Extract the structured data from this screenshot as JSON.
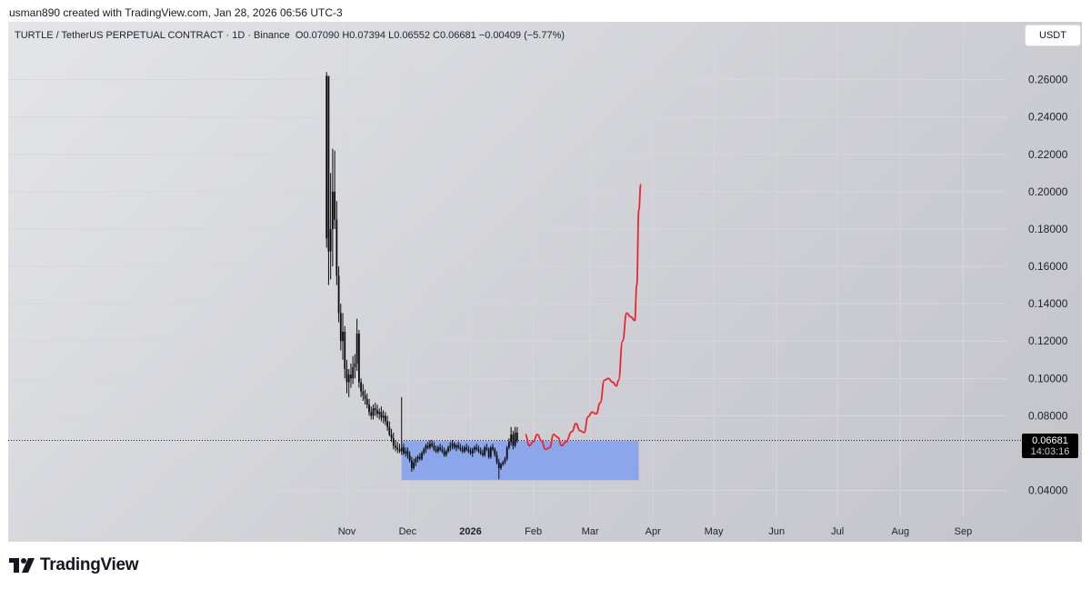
{
  "header": {
    "credit": "usman890 created with TradingView.com, Jan 28, 2026 06:56 UTC-3"
  },
  "symbol_bar": {
    "name": "TURTLE / TetherUS PERPETUAL CONTRACT · 1D · Binance",
    "open": "O0.07090",
    "high": "H0.07394",
    "low": "L0.06552",
    "close": "C0.06681",
    "change": "−0.00409 (−5.77%)"
  },
  "currency_button": "USDT",
  "last_price": {
    "value": "0.06681",
    "countdown": "14:03:16"
  },
  "logo": {
    "text": "TradingView",
    "icon": "tradingview-logo-icon"
  },
  "colors": {
    "candle": "#0b0b0b",
    "range_box": "#7f9fef",
    "projection": "#e8272e",
    "grid": "#d6d7dc"
  },
  "chart_data": {
    "type": "candlestick",
    "title": "TURTLE / TetherUS PERPETUAL CONTRACT · 1D · Binance",
    "y_axis": {
      "ticks": [
        "0.26000",
        "0.24000",
        "0.22000",
        "0.20000",
        "0.18000",
        "0.16000",
        "0.14000",
        "0.12000",
        "0.10000",
        "0.08000",
        "0.04000"
      ],
      "tick_values": [
        0.26,
        0.24,
        0.22,
        0.2,
        0.18,
        0.16,
        0.14,
        0.12,
        0.1,
        0.08,
        0.04
      ],
      "range": [
        0.02,
        0.285
      ],
      "position": "right"
    },
    "x_axis": {
      "ticks": [
        {
          "label": "Nov",
          "date": "2025-11-01"
        },
        {
          "label": "Dec",
          "date": "2025-12-01"
        },
        {
          "label": "2026",
          "date": "2026-01-01",
          "bold": true
        },
        {
          "label": "Feb",
          "date": "2026-02-01"
        },
        {
          "label": "Mar",
          "date": "2026-03-01"
        },
        {
          "label": "Apr",
          "date": "2026-04-01"
        },
        {
          "label": "May",
          "date": "2026-05-01"
        },
        {
          "label": "Jun",
          "date": "2026-06-01"
        },
        {
          "label": "Jul",
          "date": "2026-07-01"
        },
        {
          "label": "Aug",
          "date": "2026-08-01"
        },
        {
          "label": "Sep",
          "date": "2026-09-01"
        }
      ]
    },
    "grid": true,
    "last_close": 0.06681,
    "candles": [
      {
        "date": "2025-10-22",
        "o": 0.175,
        "h": 0.264,
        "l": 0.17,
        "c": 0.262
      },
      {
        "date": "2025-10-23",
        "o": 0.262,
        "h": 0.262,
        "l": 0.15,
        "c": 0.168
      },
      {
        "date": "2025-10-24",
        "o": 0.168,
        "h": 0.21,
        "l": 0.153,
        "c": 0.18
      },
      {
        "date": "2025-10-25",
        "o": 0.18,
        "h": 0.223,
        "l": 0.16,
        "c": 0.2
      },
      {
        "date": "2025-10-26",
        "o": 0.2,
        "h": 0.222,
        "l": 0.18,
        "c": 0.185
      },
      {
        "date": "2025-10-27",
        "o": 0.185,
        "h": 0.195,
        "l": 0.15,
        "c": 0.155
      },
      {
        "date": "2025-10-28",
        "o": 0.155,
        "h": 0.16,
        "l": 0.13,
        "c": 0.135
      },
      {
        "date": "2025-10-29",
        "o": 0.135,
        "h": 0.14,
        "l": 0.115,
        "c": 0.12
      },
      {
        "date": "2025-10-30",
        "o": 0.12,
        "h": 0.135,
        "l": 0.11,
        "c": 0.125
      },
      {
        "date": "2025-10-31",
        "o": 0.125,
        "h": 0.128,
        "l": 0.1,
        "c": 0.105
      },
      {
        "date": "2025-11-01",
        "o": 0.105,
        "h": 0.11,
        "l": 0.092,
        "c": 0.098
      },
      {
        "date": "2025-11-02",
        "o": 0.098,
        "h": 0.105,
        "l": 0.09,
        "c": 0.102
      },
      {
        "date": "2025-11-03",
        "o": 0.102,
        "h": 0.108,
        "l": 0.095,
        "c": 0.1
      },
      {
        "date": "2025-11-04",
        "o": 0.1,
        "h": 0.112,
        "l": 0.097,
        "c": 0.106
      },
      {
        "date": "2025-11-05",
        "o": 0.106,
        "h": 0.113,
        "l": 0.1,
        "c": 0.108
      },
      {
        "date": "2025-11-06",
        "o": 0.108,
        "h": 0.132,
        "l": 0.104,
        "c": 0.124
      },
      {
        "date": "2025-11-07",
        "o": 0.124,
        "h": 0.126,
        "l": 0.095,
        "c": 0.098
      },
      {
        "date": "2025-11-08",
        "o": 0.098,
        "h": 0.1,
        "l": 0.09,
        "c": 0.093
      },
      {
        "date": "2025-11-09",
        "o": 0.093,
        "h": 0.097,
        "l": 0.088,
        "c": 0.091
      },
      {
        "date": "2025-11-10",
        "o": 0.091,
        "h": 0.094,
        "l": 0.086,
        "c": 0.089
      },
      {
        "date": "2025-11-11",
        "o": 0.089,
        "h": 0.092,
        "l": 0.084,
        "c": 0.086
      },
      {
        "date": "2025-11-12",
        "o": 0.086,
        "h": 0.089,
        "l": 0.08,
        "c": 0.082
      },
      {
        "date": "2025-11-13",
        "o": 0.082,
        "h": 0.085,
        "l": 0.078,
        "c": 0.08
      },
      {
        "date": "2025-11-14",
        "o": 0.08,
        "h": 0.086,
        "l": 0.078,
        "c": 0.084
      },
      {
        "date": "2025-11-15",
        "o": 0.084,
        "h": 0.087,
        "l": 0.08,
        "c": 0.083
      },
      {
        "date": "2025-11-16",
        "o": 0.083,
        "h": 0.086,
        "l": 0.079,
        "c": 0.081
      },
      {
        "date": "2025-11-17",
        "o": 0.081,
        "h": 0.084,
        "l": 0.078,
        "c": 0.082
      },
      {
        "date": "2025-11-18",
        "o": 0.082,
        "h": 0.085,
        "l": 0.077,
        "c": 0.079
      },
      {
        "date": "2025-11-19",
        "o": 0.079,
        "h": 0.083,
        "l": 0.076,
        "c": 0.08
      },
      {
        "date": "2025-11-20",
        "o": 0.08,
        "h": 0.082,
        "l": 0.075,
        "c": 0.077
      },
      {
        "date": "2025-11-21",
        "o": 0.077,
        "h": 0.08,
        "l": 0.072,
        "c": 0.074
      },
      {
        "date": "2025-11-22",
        "o": 0.074,
        "h": 0.077,
        "l": 0.069,
        "c": 0.07
      },
      {
        "date": "2025-11-23",
        "o": 0.07,
        "h": 0.073,
        "l": 0.066,
        "c": 0.068
      },
      {
        "date": "2025-11-24",
        "o": 0.068,
        "h": 0.071,
        "l": 0.062,
        "c": 0.064
      },
      {
        "date": "2025-11-25",
        "o": 0.064,
        "h": 0.067,
        "l": 0.061,
        "c": 0.063
      },
      {
        "date": "2025-11-26",
        "o": 0.063,
        "h": 0.066,
        "l": 0.06,
        "c": 0.062
      },
      {
        "date": "2025-11-27",
        "o": 0.062,
        "h": 0.065,
        "l": 0.06,
        "c": 0.061
      },
      {
        "date": "2025-11-28",
        "o": 0.061,
        "h": 0.09,
        "l": 0.059,
        "c": 0.063
      },
      {
        "date": "2025-11-29",
        "o": 0.063,
        "h": 0.065,
        "l": 0.059,
        "c": 0.06
      },
      {
        "date": "2025-11-30",
        "o": 0.06,
        "h": 0.063,
        "l": 0.058,
        "c": 0.061
      },
      {
        "date": "2025-12-01",
        "o": 0.061,
        "h": 0.063,
        "l": 0.057,
        "c": 0.059
      },
      {
        "date": "2025-12-02",
        "o": 0.059,
        "h": 0.061,
        "l": 0.055,
        "c": 0.056
      },
      {
        "date": "2025-12-03",
        "o": 0.056,
        "h": 0.058,
        "l": 0.05,
        "c": 0.052
      },
      {
        "date": "2025-12-04",
        "o": 0.052,
        "h": 0.057,
        "l": 0.051,
        "c": 0.055
      },
      {
        "date": "2025-12-05",
        "o": 0.055,
        "h": 0.058,
        "l": 0.053,
        "c": 0.057
      },
      {
        "date": "2025-12-06",
        "o": 0.057,
        "h": 0.059,
        "l": 0.055,
        "c": 0.058
      },
      {
        "date": "2025-12-07",
        "o": 0.058,
        "h": 0.06,
        "l": 0.056,
        "c": 0.057
      },
      {
        "date": "2025-12-08",
        "o": 0.057,
        "h": 0.061,
        "l": 0.056,
        "c": 0.06
      },
      {
        "date": "2025-12-09",
        "o": 0.06,
        "h": 0.063,
        "l": 0.059,
        "c": 0.062
      },
      {
        "date": "2025-12-10",
        "o": 0.062,
        "h": 0.065,
        "l": 0.06,
        "c": 0.064
      },
      {
        "date": "2025-12-11",
        "o": 0.064,
        "h": 0.066,
        "l": 0.062,
        "c": 0.063
      },
      {
        "date": "2025-12-12",
        "o": 0.063,
        "h": 0.067,
        "l": 0.062,
        "c": 0.065
      },
      {
        "date": "2025-12-13",
        "o": 0.065,
        "h": 0.067,
        "l": 0.063,
        "c": 0.064
      },
      {
        "date": "2025-12-14",
        "o": 0.064,
        "h": 0.066,
        "l": 0.061,
        "c": 0.062
      },
      {
        "date": "2025-12-15",
        "o": 0.062,
        "h": 0.064,
        "l": 0.06,
        "c": 0.061
      },
      {
        "date": "2025-12-16",
        "o": 0.061,
        "h": 0.064,
        "l": 0.06,
        "c": 0.063
      },
      {
        "date": "2025-12-17",
        "o": 0.063,
        "h": 0.065,
        "l": 0.061,
        "c": 0.062
      },
      {
        "date": "2025-12-18",
        "o": 0.062,
        "h": 0.064,
        "l": 0.06,
        "c": 0.061
      },
      {
        "date": "2025-12-19",
        "o": 0.061,
        "h": 0.063,
        "l": 0.058,
        "c": 0.059
      },
      {
        "date": "2025-12-20",
        "o": 0.059,
        "h": 0.062,
        "l": 0.058,
        "c": 0.061
      },
      {
        "date": "2025-12-21",
        "o": 0.061,
        "h": 0.064,
        "l": 0.06,
        "c": 0.063
      },
      {
        "date": "2025-12-22",
        "o": 0.063,
        "h": 0.066,
        "l": 0.061,
        "c": 0.064
      },
      {
        "date": "2025-12-23",
        "o": 0.064,
        "h": 0.067,
        "l": 0.062,
        "c": 0.065
      },
      {
        "date": "2025-12-24",
        "o": 0.065,
        "h": 0.066,
        "l": 0.062,
        "c": 0.063
      },
      {
        "date": "2025-12-25",
        "o": 0.063,
        "h": 0.065,
        "l": 0.061,
        "c": 0.064
      },
      {
        "date": "2025-12-26",
        "o": 0.064,
        "h": 0.066,
        "l": 0.062,
        "c": 0.063
      },
      {
        "date": "2025-12-27",
        "o": 0.063,
        "h": 0.065,
        "l": 0.061,
        "c": 0.062
      },
      {
        "date": "2025-12-28",
        "o": 0.062,
        "h": 0.064,
        "l": 0.06,
        "c": 0.061
      },
      {
        "date": "2025-12-29",
        "o": 0.061,
        "h": 0.064,
        "l": 0.06,
        "c": 0.063
      },
      {
        "date": "2025-12-30",
        "o": 0.063,
        "h": 0.065,
        "l": 0.061,
        "c": 0.062
      },
      {
        "date": "2025-12-31",
        "o": 0.062,
        "h": 0.064,
        "l": 0.06,
        "c": 0.061
      },
      {
        "date": "2026-01-01",
        "o": 0.061,
        "h": 0.063,
        "l": 0.059,
        "c": 0.06
      },
      {
        "date": "2026-01-02",
        "o": 0.06,
        "h": 0.063,
        "l": 0.058,
        "c": 0.062
      },
      {
        "date": "2026-01-03",
        "o": 0.062,
        "h": 0.064,
        "l": 0.06,
        "c": 0.063
      },
      {
        "date": "2026-01-04",
        "o": 0.063,
        "h": 0.065,
        "l": 0.061,
        "c": 0.062
      },
      {
        "date": "2026-01-05",
        "o": 0.062,
        "h": 0.064,
        "l": 0.06,
        "c": 0.061
      },
      {
        "date": "2026-01-06",
        "o": 0.061,
        "h": 0.063,
        "l": 0.059,
        "c": 0.06
      },
      {
        "date": "2026-01-07",
        "o": 0.06,
        "h": 0.062,
        "l": 0.058,
        "c": 0.059
      },
      {
        "date": "2026-01-08",
        "o": 0.059,
        "h": 0.064,
        "l": 0.058,
        "c": 0.063
      },
      {
        "date": "2026-01-09",
        "o": 0.063,
        "h": 0.065,
        "l": 0.061,
        "c": 0.062
      },
      {
        "date": "2026-01-10",
        "o": 0.062,
        "h": 0.063,
        "l": 0.057,
        "c": 0.058
      },
      {
        "date": "2026-01-11",
        "o": 0.058,
        "h": 0.064,
        "l": 0.057,
        "c": 0.063
      },
      {
        "date": "2026-01-12",
        "o": 0.063,
        "h": 0.065,
        "l": 0.061,
        "c": 0.062
      },
      {
        "date": "2026-01-13",
        "o": 0.062,
        "h": 0.063,
        "l": 0.058,
        "c": 0.059
      },
      {
        "date": "2026-01-14",
        "o": 0.059,
        "h": 0.061,
        "l": 0.054,
        "c": 0.055
      },
      {
        "date": "2026-01-15",
        "o": 0.055,
        "h": 0.057,
        "l": 0.046,
        "c": 0.052
      },
      {
        "date": "2026-01-16",
        "o": 0.052,
        "h": 0.055,
        "l": 0.051,
        "c": 0.054
      },
      {
        "date": "2026-01-17",
        "o": 0.054,
        "h": 0.056,
        "l": 0.053,
        "c": 0.055
      },
      {
        "date": "2026-01-18",
        "o": 0.055,
        "h": 0.058,
        "l": 0.054,
        "c": 0.057
      },
      {
        "date": "2026-01-19",
        "o": 0.057,
        "h": 0.064,
        "l": 0.056,
        "c": 0.063
      },
      {
        "date": "2026-01-20",
        "o": 0.063,
        "h": 0.068,
        "l": 0.062,
        "c": 0.066
      },
      {
        "date": "2026-01-21",
        "o": 0.066,
        "h": 0.074,
        "l": 0.064,
        "c": 0.07
      },
      {
        "date": "2026-01-22",
        "o": 0.07,
        "h": 0.072,
        "l": 0.062,
        "c": 0.064
      },
      {
        "date": "2026-01-23",
        "o": 0.064,
        "h": 0.074,
        "l": 0.063,
        "c": 0.071
      },
      {
        "date": "2026-01-24",
        "o": 0.0709,
        "h": 0.07394,
        "l": 0.06552,
        "c": 0.06681
      }
    ],
    "range_box": {
      "start": "2025-11-28",
      "end": "2026-03-25",
      "top": 0.0665,
      "bottom": 0.0455
    },
    "projection": [
      {
        "date": "2026-01-28",
        "y": 0.07
      },
      {
        "date": "2026-01-30",
        "y": 0.064
      },
      {
        "date": "2026-02-01",
        "y": 0.0662
      },
      {
        "date": "2026-02-03",
        "y": 0.07
      },
      {
        "date": "2026-02-05",
        "y": 0.0665
      },
      {
        "date": "2026-02-07",
        "y": 0.062
      },
      {
        "date": "2026-02-09",
        "y": 0.063
      },
      {
        "date": "2026-02-11",
        "y": 0.07
      },
      {
        "date": "2026-02-13",
        "y": 0.0685
      },
      {
        "date": "2026-02-15",
        "y": 0.064
      },
      {
        "date": "2026-02-17",
        "y": 0.066
      },
      {
        "date": "2026-02-20",
        "y": 0.0715
      },
      {
        "date": "2026-02-22",
        "y": 0.0758
      },
      {
        "date": "2026-02-24",
        "y": 0.072
      },
      {
        "date": "2026-02-26",
        "y": 0.071
      },
      {
        "date": "2026-02-28",
        "y": 0.0795
      },
      {
        "date": "2026-03-02",
        "y": 0.082
      },
      {
        "date": "2026-03-04",
        "y": 0.081
      },
      {
        "date": "2026-03-06",
        "y": 0.087
      },
      {
        "date": "2026-03-08",
        "y": 0.099
      },
      {
        "date": "2026-03-10",
        "y": 0.1
      },
      {
        "date": "2026-03-12",
        "y": 0.098
      },
      {
        "date": "2026-03-14",
        "y": 0.096
      },
      {
        "date": "2026-03-15",
        "y": 0.099
      },
      {
        "date": "2026-03-17",
        "y": 0.12
      },
      {
        "date": "2026-03-19",
        "y": 0.135
      },
      {
        "date": "2026-03-21",
        "y": 0.133
      },
      {
        "date": "2026-03-23",
        "y": 0.131
      },
      {
        "date": "2026-03-24",
        "y": 0.15
      },
      {
        "date": "2026-03-25",
        "y": 0.19
      },
      {
        "date": "2026-03-26",
        "y": 0.204
      }
    ]
  }
}
